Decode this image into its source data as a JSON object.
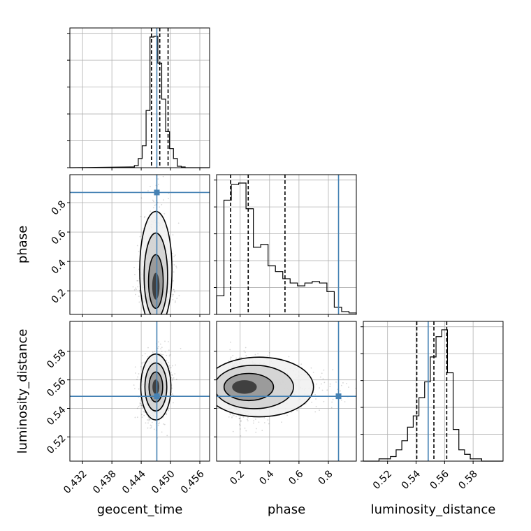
{
  "chart_data": {
    "type": "corner",
    "parameters": [
      "geocent_time",
      "phase",
      "luminosity_distance"
    ],
    "axis_labels": {
      "geocent_time": "geocent_time",
      "phase": "phase",
      "luminosity_distance": "luminosity_distance"
    },
    "ranges": {
      "geocent_time": [
        0.4294,
        0.458
      ],
      "phase": [
        0.04,
        0.99
      ],
      "luminosity_distance": [
        0.503,
        0.601
      ]
    },
    "ticks": {
      "geocent_time": [
        0.432,
        0.438,
        0.444,
        0.45,
        0.456
      ],
      "phase": [
        0.2,
        0.4,
        0.6,
        0.8
      ],
      "luminosity_distance": [
        0.52,
        0.54,
        0.56,
        0.58
      ]
    },
    "tick_labels": {
      "geocent_time": [
        "0.432",
        "0.438",
        "0.444",
        "0.450",
        "0.456"
      ],
      "phase": [
        "0.2",
        "0.4",
        "0.6",
        "0.8"
      ],
      "luminosity_distance": [
        "0.52",
        "0.54",
        "0.56",
        "0.58"
      ]
    },
    "truths": {
      "geocent_time": 0.4472,
      "phase": 0.869,
      "luminosity_distance": 0.5485
    },
    "quantiles": {
      "geocent_time": [
        0.4461,
        0.4478,
        0.4495
      ],
      "phase": [
        0.135,
        0.255,
        0.505
      ],
      "luminosity_distance": [
        0.5405,
        0.5525,
        0.5615
      ]
    },
    "histograms": {
      "geocent_time": {
        "bin_edges": [
          0.4418,
          0.4426,
          0.4434,
          0.4442,
          0.445,
          0.4458,
          0.4466,
          0.4474,
          0.4482,
          0.449,
          0.4498,
          0.4506,
          0.4514,
          0.4522,
          0.453,
          0.4538
        ],
        "counts": [
          1,
          3,
          13,
          31,
          81,
          185,
          186,
          148,
          97,
          51,
          27,
          13,
          2,
          1,
          0
        ]
      },
      "phase": {
        "bin_edges": [
          0.04,
          0.09,
          0.14,
          0.19,
          0.24,
          0.29,
          0.34,
          0.39,
          0.44,
          0.49,
          0.54,
          0.59,
          0.64,
          0.69,
          0.74,
          0.79,
          0.84,
          0.89,
          0.94,
          0.99
        ],
        "counts": [
          13,
          80,
          91,
          92,
          74,
          47,
          49,
          34,
          30,
          25,
          22,
          20,
          22,
          23,
          22,
          16,
          5,
          2,
          1
        ]
      },
      "luminosity_distance": {
        "bin_edges": [
          0.506,
          0.51,
          0.514,
          0.518,
          0.522,
          0.526,
          0.53,
          0.534,
          0.538,
          0.542,
          0.546,
          0.55,
          0.554,
          0.558,
          0.562,
          0.566,
          0.57,
          0.574,
          0.578,
          0.582,
          0.586,
          0.59
        ],
        "counts": [
          0,
          0,
          1,
          1,
          2,
          5,
          9,
          15,
          20,
          28,
          35,
          46,
          55,
          58,
          39,
          14,
          5,
          3,
          1,
          1,
          0
        ]
      }
    },
    "density_2d": {
      "phase_vs_geocent_time": {
        "center": [
          0.447,
          0.2
        ],
        "sigma": [
          0.0015,
          0.13
        ],
        "note": "mode near low phase, long tail toward higher phase"
      },
      "luminosity_distance_vs_geocent_time": {
        "center": [
          0.447,
          0.555
        ],
        "sigma": [
          0.0014,
          0.0105
        ]
      },
      "luminosity_distance_vs_phase": {
        "center": [
          0.2,
          0.555
        ],
        "sigma": [
          0.12,
          0.0095
        ],
        "note": "tail extends toward phase 0.7"
      }
    },
    "colors": {
      "hist": "#000000",
      "truth": "#4682b4",
      "grid": "#b0b0b0",
      "samples": "#000000"
    }
  }
}
